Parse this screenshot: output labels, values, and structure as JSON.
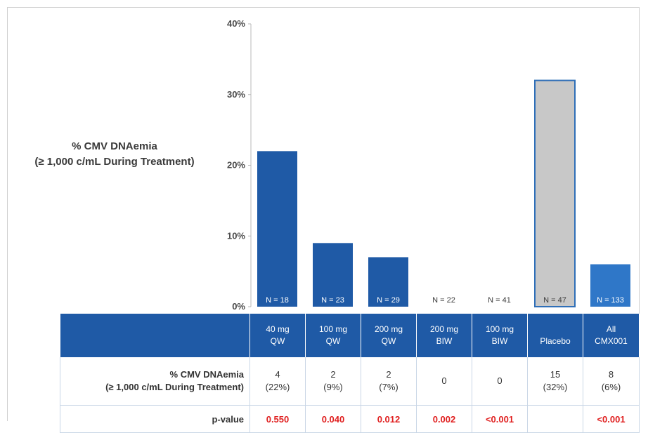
{
  "chart_data": {
    "type": "bar",
    "ylabel_lines": [
      "% CMV DNAemia",
      "(≥ 1,000 c/mL During Treatment)"
    ],
    "ylim": [
      0,
      40
    ],
    "yticks": [
      "0%",
      "10%",
      "20%",
      "30%",
      "40%"
    ],
    "categories": [
      "40 mg QW",
      "100 mg QW",
      "200 mg QW",
      "200 mg BIW",
      "100 mg BIW",
      "Placebo",
      "All CMX001"
    ],
    "values": [
      22,
      9,
      7,
      0,
      0,
      32,
      6
    ],
    "n_labels": [
      "N = 18",
      "N = 23",
      "N = 29",
      "N = 22",
      "N = 41",
      "N = 47",
      "N = 133"
    ],
    "bar_colors": [
      "#1f5aa6",
      "#1f5aa6",
      "#1f5aa6",
      "#1f5aa6",
      "#1f5aa6",
      "#c8c8c8",
      "#2f77c8"
    ]
  },
  "table": {
    "header_lines": [
      [
        "40 mg",
        "QW"
      ],
      [
        "100 mg",
        "QW"
      ],
      [
        "200 mg",
        "QW"
      ],
      [
        "200 mg",
        "BIW"
      ],
      [
        "100 mg",
        "BIW"
      ],
      [
        "",
        "Placebo"
      ],
      [
        "All",
        "CMX001"
      ]
    ],
    "row1_label_lines": [
      "% CMV DNAemia",
      "(≥ 1,000 c/mL During Treatment)"
    ],
    "row1_counts": [
      "4",
      "2",
      "2",
      "0",
      "0",
      "15",
      "8"
    ],
    "row1_pcts": [
      "(22%)",
      "(9%)",
      "(7%)",
      "",
      "",
      "(32%)",
      "(6%)"
    ],
    "row2_label": "p-value",
    "row2_values": [
      "0.550",
      "0.040",
      "0.012",
      "0.002",
      "<0.001",
      "",
      "<0.001"
    ]
  }
}
